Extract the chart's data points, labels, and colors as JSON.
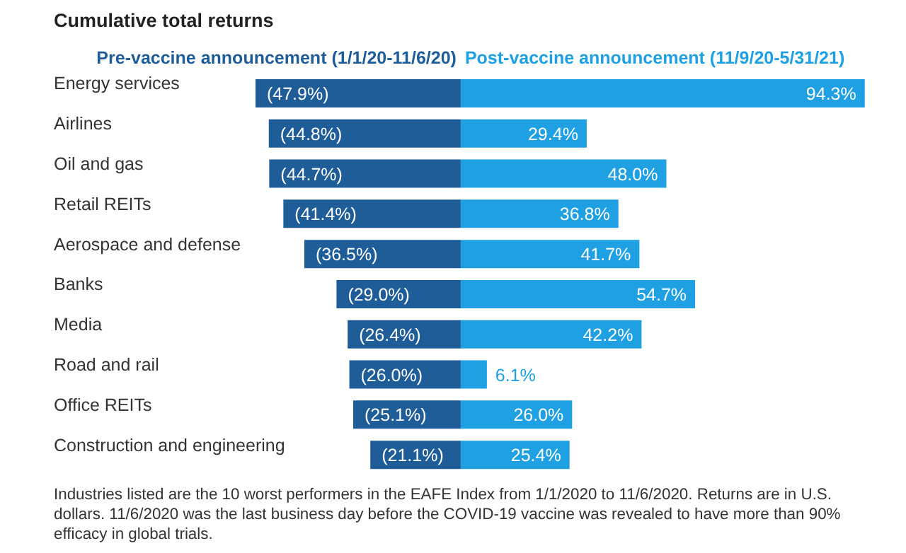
{
  "chart_data": {
    "type": "bar",
    "orientation": "horizontal",
    "stacked": true,
    "title": "Cumulative total returns",
    "categories": [
      "Energy services",
      "Airlines",
      "Oil and gas",
      "Retail REITs",
      "Aerospace and defense",
      "Banks",
      "Media",
      "Road and rail",
      "Office REITs",
      "Construction and engineering"
    ],
    "series": [
      {
        "name": "Pre-vaccine announcement (1/1/20-11/6/20)",
        "color": "#1f5d99",
        "values": [
          -47.9,
          -44.8,
          -44.7,
          -41.4,
          -36.5,
          -29.0,
          -26.4,
          -26.0,
          -25.1,
          -21.1
        ],
        "value_labels": [
          "(47.9%)",
          "(44.8%)",
          "(44.7%)",
          "(41.4%)",
          "(36.5%)",
          "(29.0%)",
          "(26.4%)",
          "(26.0%)",
          "(25.1%)",
          "(21.1%)"
        ]
      },
      {
        "name": "Post-vaccine announcement (11/9/20-5/31/21)",
        "color": "#1fa0e3",
        "values": [
          94.3,
          29.4,
          48.0,
          36.8,
          41.7,
          54.7,
          42.2,
          6.1,
          26.0,
          25.4
        ],
        "value_labels": [
          "94.3%",
          "29.4%",
          "48.0%",
          "36.8%",
          "41.7%",
          "54.7%",
          "42.2%",
          "6.1%",
          "26.0%",
          "25.4%"
        ]
      }
    ],
    "legend": "top",
    "annotations": [
      "Industries listed are the 10 worst performers in the EAFE Index from 1/1/2020 to 11/6/2020. Returns are in U.S. dollars. 11/6/2020 was the last business day before the COVID-19 vaccine was revealed to have more than 90% efficacy in global trials."
    ]
  }
}
